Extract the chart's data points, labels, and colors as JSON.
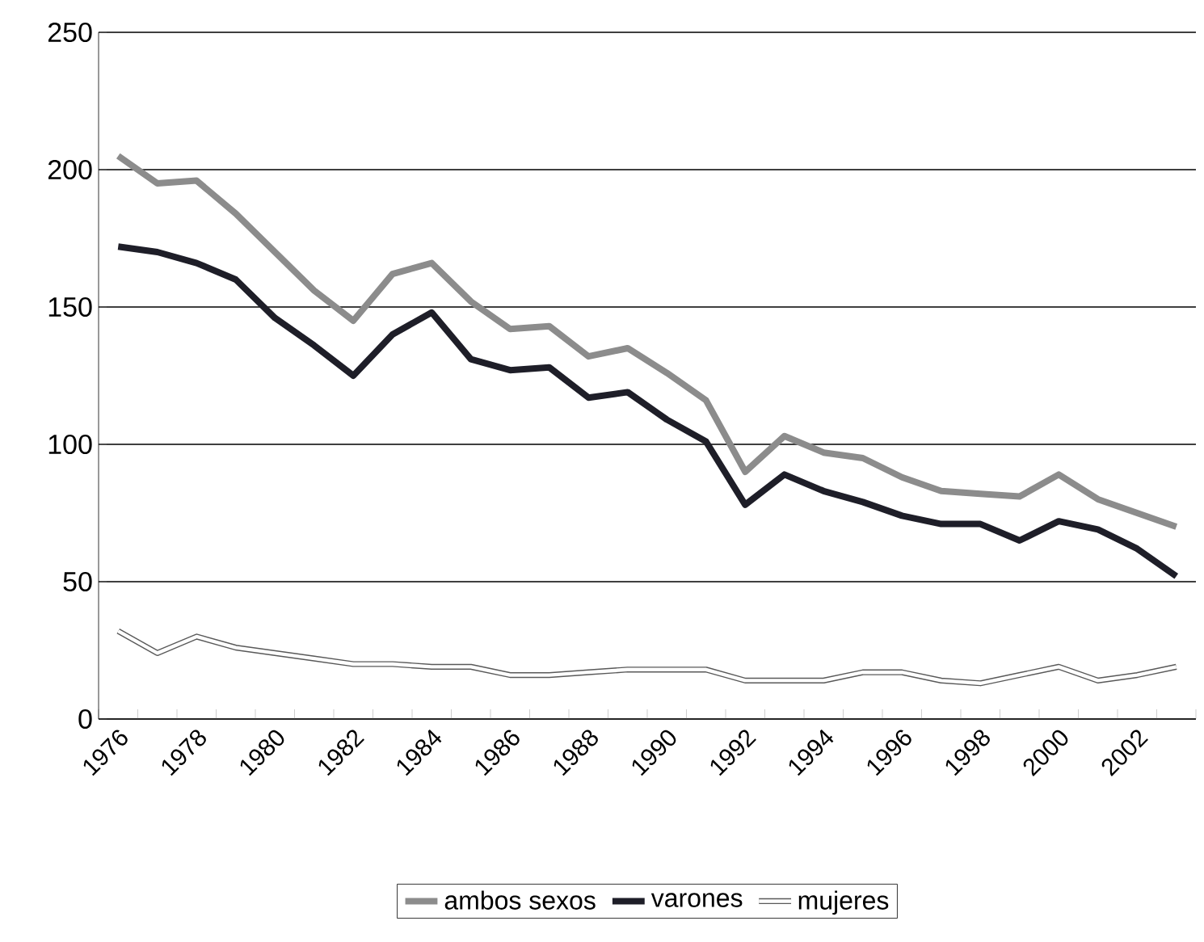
{
  "chart_data": {
    "type": "line",
    "categories": [
      "1976",
      null,
      "1978",
      null,
      "1980",
      null,
      "1982",
      null,
      "1984",
      null,
      "1986",
      null,
      "1988",
      null,
      "1990",
      null,
      "1992",
      null,
      "1994",
      null,
      "1996",
      null,
      "1998",
      null,
      "2000",
      null,
      "2002",
      null
    ],
    "series": [
      {
        "name": "ambos sexos",
        "color": "#8c8c8c",
        "values": [
          205,
          195,
          196,
          184,
          170,
          156,
          145,
          162,
          166,
          152,
          142,
          143,
          132,
          135,
          126,
          116,
          90,
          103,
          97,
          95,
          88,
          83,
          82,
          81,
          89,
          80,
          75,
          70
        ]
      },
      {
        "name": "varones",
        "color": "#1e1e28",
        "values": [
          172,
          170,
          166,
          160,
          146,
          136,
          125,
          140,
          148,
          131,
          127,
          128,
          117,
          119,
          109,
          101,
          78,
          89,
          83,
          79,
          74,
          71,
          71,
          65,
          72,
          69,
          62,
          52
        ]
      },
      {
        "name": "mujeres",
        "color": "#ffffff",
        "values": [
          32,
          24,
          30,
          26,
          24,
          22,
          20,
          20,
          19,
          19,
          16,
          16,
          17,
          18,
          18,
          18,
          14,
          14,
          14,
          17,
          17,
          14,
          13,
          16,
          19,
          14,
          16,
          19
        ]
      }
    ],
    "ylim": [
      0,
      250
    ],
    "yticks": [
      0,
      50,
      100,
      150,
      200,
      250
    ],
    "grid": "y",
    "legend": "bottom",
    "marker": "none",
    "line_style": "solid"
  }
}
